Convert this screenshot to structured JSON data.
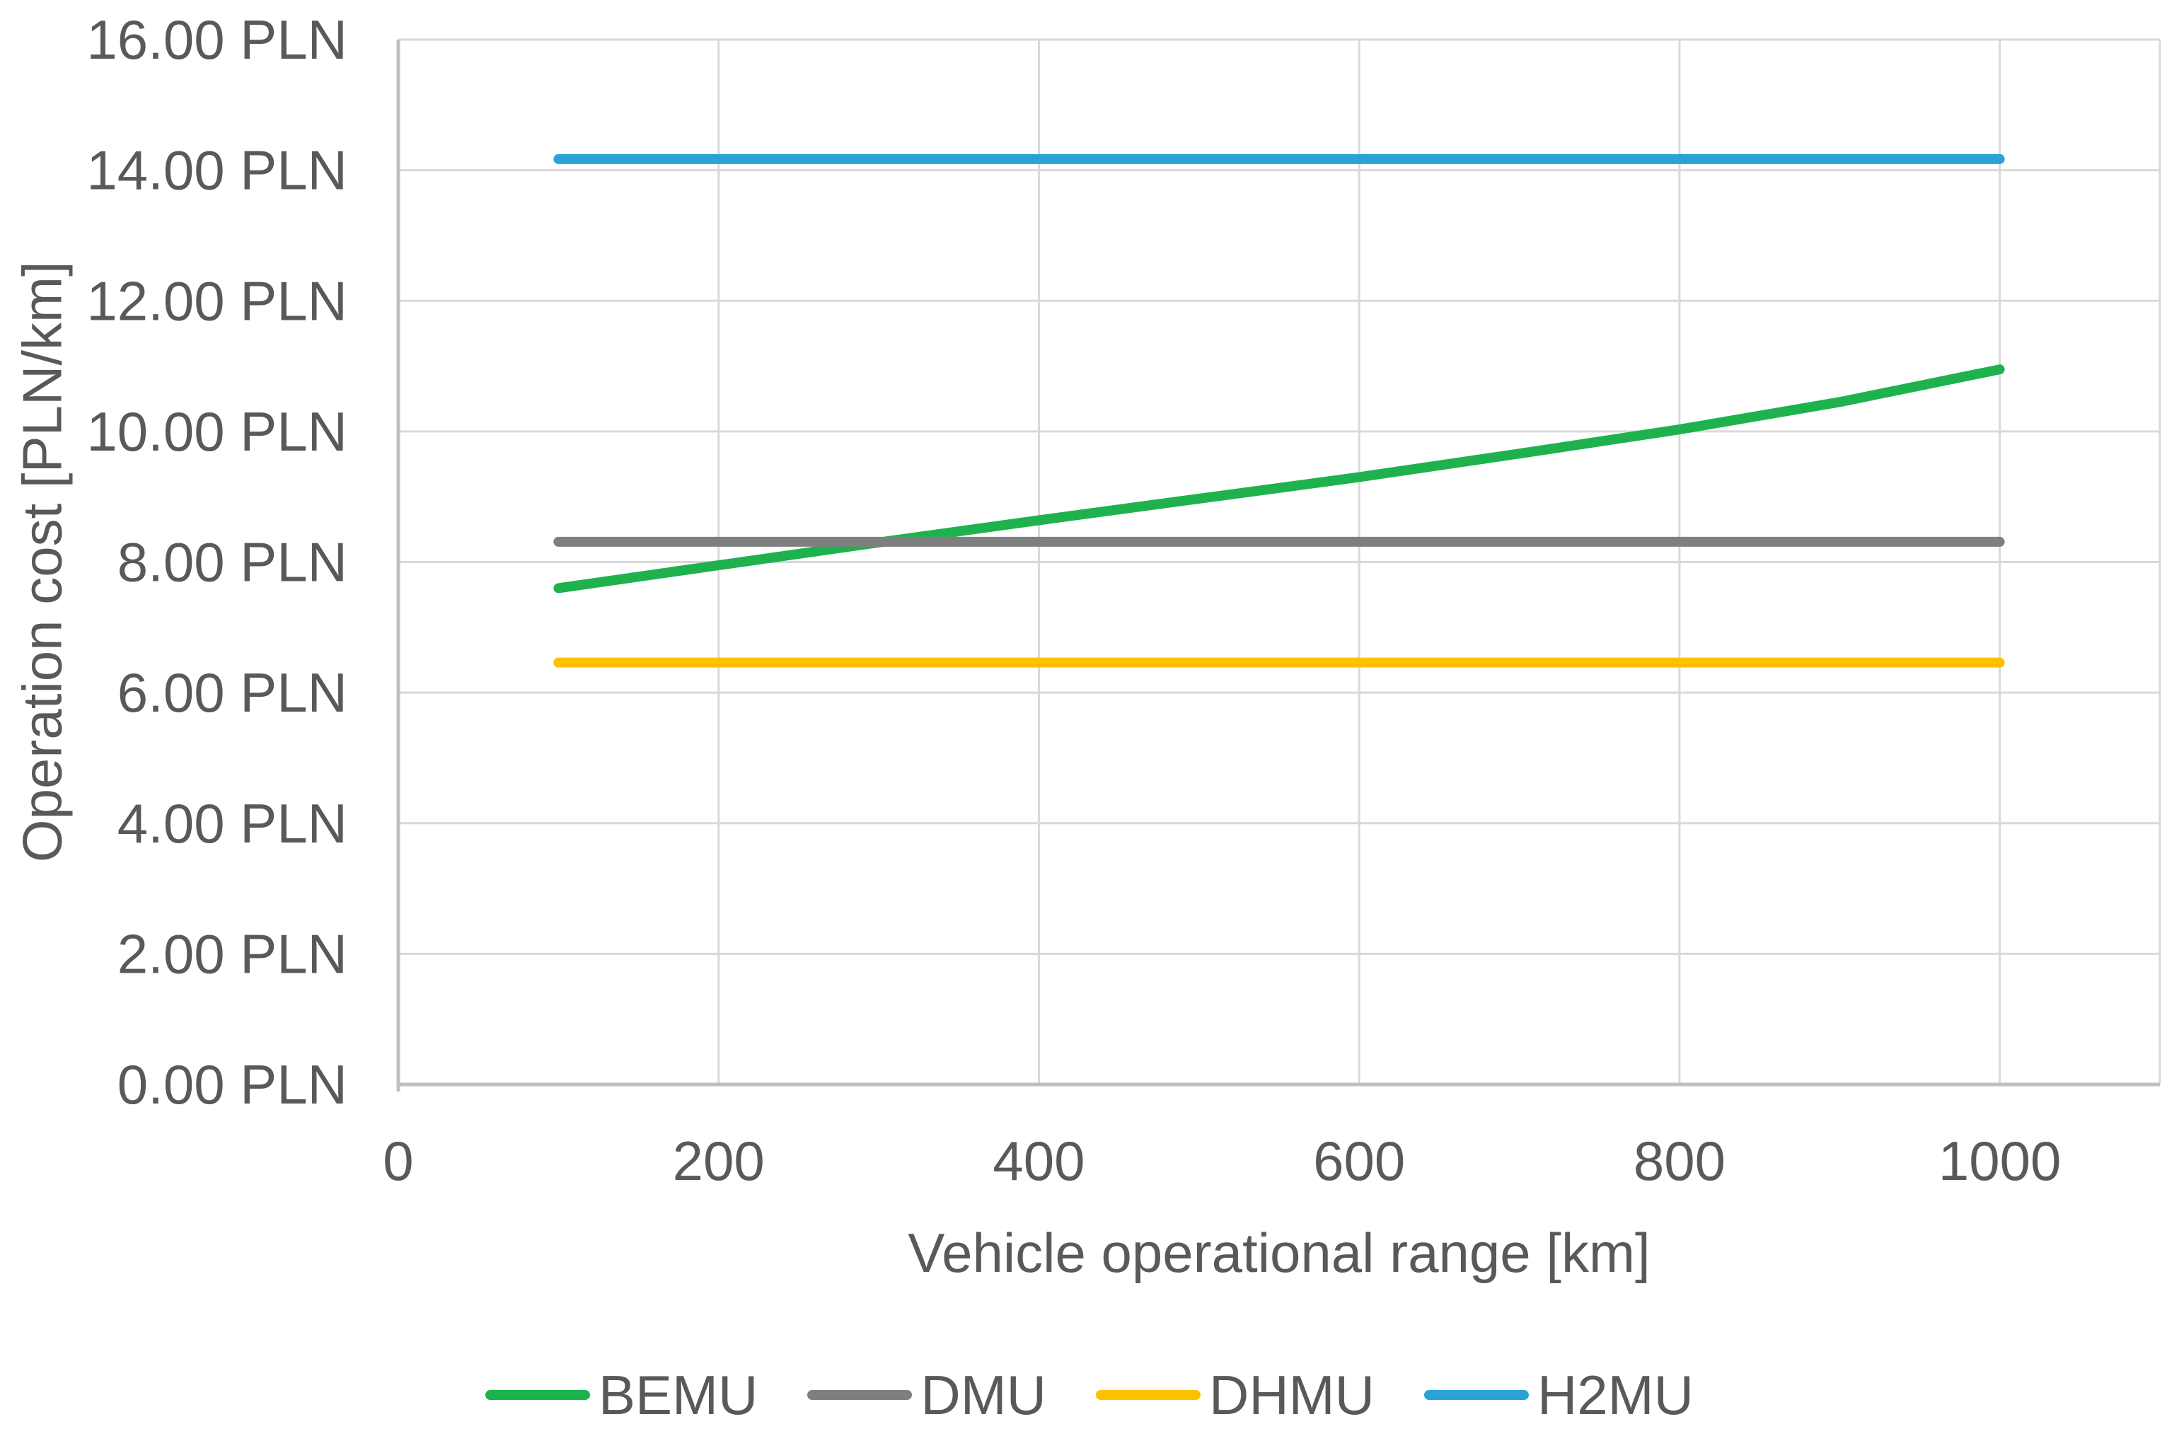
{
  "chart_data": {
    "type": "line",
    "title": "",
    "xlabel": "Vehicle operational range [km]",
    "ylabel": "Operation cost [PLN/km]",
    "xlim": [
      0,
      1100
    ],
    "ylim": [
      0,
      16
    ],
    "grid": true,
    "legend_position": "bottom",
    "x_ticks": [
      {
        "value": 0,
        "label": "0"
      },
      {
        "value": 200,
        "label": "200"
      },
      {
        "value": 400,
        "label": "400"
      },
      {
        "value": 600,
        "label": "600"
      },
      {
        "value": 800,
        "label": "800"
      },
      {
        "value": 1000,
        "label": "1000"
      }
    ],
    "y_ticks": [
      {
        "value": 0,
        "label": "0.00 PLN"
      },
      {
        "value": 2,
        "label": "2.00 PLN"
      },
      {
        "value": 4,
        "label": "4.00 PLN"
      },
      {
        "value": 6,
        "label": "6.00 PLN"
      },
      {
        "value": 8,
        "label": "8.00 PLN"
      },
      {
        "value": 10,
        "label": "10.00 PLN"
      },
      {
        "value": 12,
        "label": "12.00 PLN"
      },
      {
        "value": 14,
        "label": "14.00 PLN"
      },
      {
        "value": 16,
        "label": "16.00 PLN"
      }
    ],
    "extra_v_gridlines": [
      1100
    ],
    "series": [
      {
        "name": "BEMU",
        "color": "#1eb24e",
        "x": [
          100,
          200,
          300,
          400,
          500,
          600,
          700,
          800,
          900,
          1000
        ],
        "values": [
          7.6,
          7.95,
          8.3,
          8.64,
          8.97,
          9.3,
          9.66,
          10.03,
          10.45,
          10.95
        ]
      },
      {
        "name": "DMU",
        "color": "#7f7f7f",
        "x": [
          100,
          1000
        ],
        "values": [
          8.31,
          8.31
        ]
      },
      {
        "name": "DHMU",
        "color": "#ffc000",
        "x": [
          100,
          1000
        ],
        "values": [
          6.46,
          6.46
        ]
      },
      {
        "name": "H2MU",
        "color": "#29a2d8",
        "x": [
          100,
          1000
        ],
        "values": [
          14.17,
          14.17
        ]
      }
    ]
  },
  "colors": {
    "axis_text": "#595959",
    "gridline": "#d9d9d9",
    "axis_line": "#bfbfbf",
    "background": "#ffffff"
  }
}
